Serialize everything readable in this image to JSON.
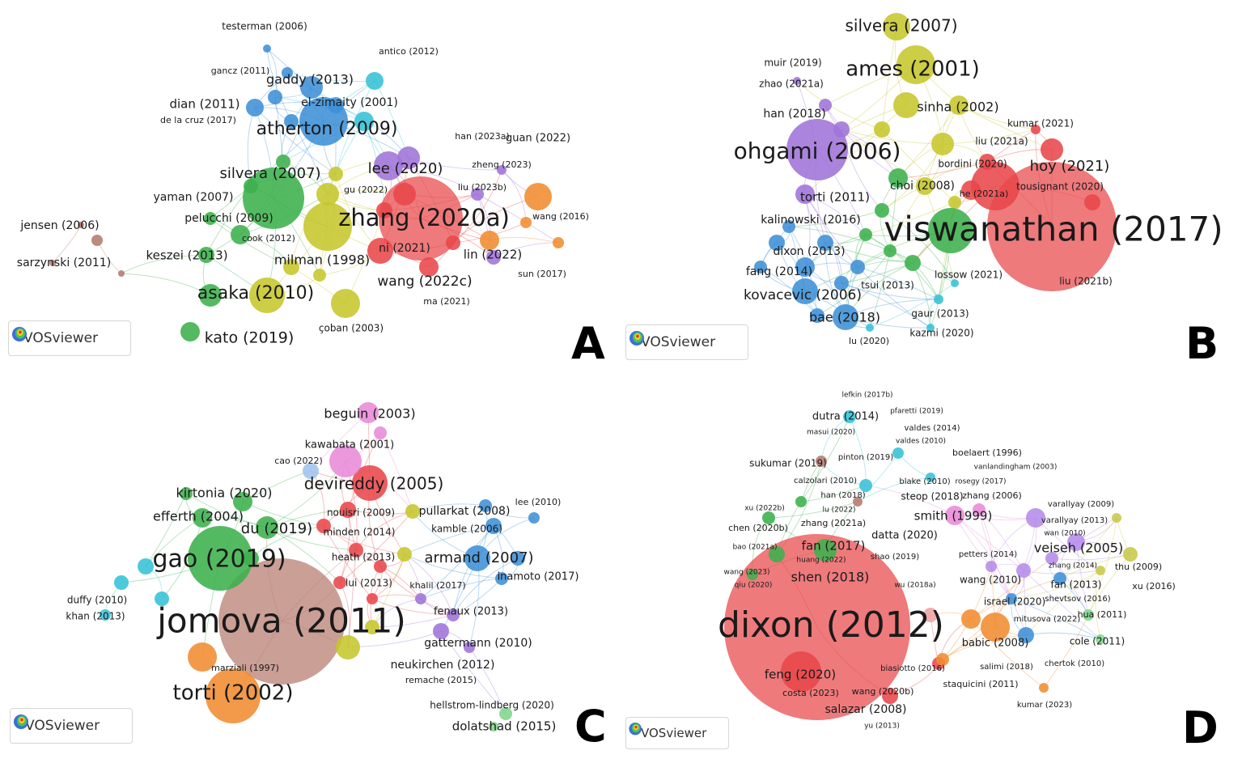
{
  "brand": {
    "logo_label": "VOSviewer"
  },
  "panels": [
    {
      "id": "A",
      "letter": "A",
      "labels": [
        [
          "testerman (2006)",
          327,
          33,
          12
        ],
        [
          "antico (2012)",
          505,
          64,
          11
        ],
        [
          "gancz (2011)",
          297,
          88,
          11
        ],
        [
          "gaddy (2013)",
          383,
          99,
          16
        ],
        [
          "dian (2011)",
          253,
          129,
          15
        ],
        [
          "el-zimaity (2001)",
          432,
          127,
          14
        ],
        [
          "de la cruz (2017)",
          245,
          149,
          11
        ],
        [
          "atherton (2009)",
          404,
          160,
          22
        ],
        [
          "han (2023a)",
          596,
          169,
          11
        ],
        [
          "guan (2022)",
          665,
          171,
          13
        ],
        [
          "lee (2020)",
          501,
          209,
          18
        ],
        [
          "zheng (2023)",
          620,
          204,
          11
        ],
        [
          "silvera (2007)",
          334,
          215,
          18
        ],
        [
          "gu (2022)",
          452,
          235,
          11
        ],
        [
          "liu (2023b)",
          596,
          232,
          11
        ],
        [
          "yaman (2007)",
          239,
          244,
          14
        ],
        [
          "zhang (2020a)",
          524,
          271,
          29
        ],
        [
          "wang (2016)",
          693,
          268,
          11
        ],
        [
          "jensen (2006)",
          74,
          279,
          14
        ],
        [
          "pelucchi (2009)",
          283,
          270,
          14
        ],
        [
          "cook (2012)",
          332,
          295,
          11
        ],
        [
          "ni (2021)",
          500,
          307,
          14
        ],
        [
          "keszei (2013)",
          231,
          316,
          15
        ],
        [
          "milman (1998)",
          398,
          322,
          16
        ],
        [
          "lin (2022)",
          609,
          315,
          15
        ],
        [
          "sarzynski (2011)",
          79,
          325,
          14
        ],
        [
          "sun (2017)",
          670,
          339,
          11
        ],
        [
          "wang (2022c)",
          525,
          348,
          17
        ],
        [
          "asaka (2010)",
          316,
          363,
          22
        ],
        [
          "ma (2021)",
          552,
          373,
          11
        ],
        [
          "çoban (2003)",
          434,
          406,
          12
        ],
        [
          "kato (2019)",
          308,
          418,
          19
        ]
      ]
    },
    {
      "id": "B",
      "letter": "B",
      "labels": [
        [
          "silvera (2007)",
          1114,
          33,
          20
        ],
        [
          "muir (2019)",
          980,
          78,
          12
        ],
        [
          "ames (2001)",
          1128,
          86,
          26
        ],
        [
          "zhao (2021a)",
          978,
          104,
          12
        ],
        [
          "sinha (2002)",
          1184,
          133,
          16
        ],
        [
          "han (2018)",
          982,
          141,
          14
        ],
        [
          "kumar (2021)",
          1286,
          153,
          12
        ],
        [
          "liu (2021a)",
          1238,
          175,
          12
        ],
        [
          "ohgami (2006)",
          1010,
          188,
          28
        ],
        [
          "bordini (2020)",
          1202,
          203,
          12
        ],
        [
          "hoy (2021)",
          1322,
          206,
          18
        ],
        [
          "choi (2008)",
          1140,
          230,
          14
        ],
        [
          "tousignant (2020)",
          1310,
          231,
          12
        ],
        [
          "he (2021a)",
          1216,
          240,
          11
        ],
        [
          "torti (2011)",
          1032,
          244,
          15
        ],
        [
          "kalinowski (2016)",
          1002,
          272,
          14
        ],
        [
          "viswanathan (2017)",
          1302,
          286,
          42
        ],
        [
          "dixon (2013)",
          1000,
          311,
          14
        ],
        [
          "fang (2014)",
          963,
          336,
          14
        ],
        [
          "lossow (2021)",
          1197,
          340,
          12
        ],
        [
          "liu (2021b)",
          1342,
          348,
          12
        ],
        [
          "tsui (2013)",
          1097,
          353,
          12
        ],
        [
          "kovacevic (2006)",
          992,
          365,
          17
        ],
        [
          "gaur (2013)",
          1162,
          388,
          12
        ],
        [
          "bae (2018)",
          1044,
          393,
          16
        ],
        [
          "kazmi (2020)",
          1164,
          412,
          12
        ],
        [
          "lu (2020)",
          1074,
          422,
          11
        ]
      ]
    },
    {
      "id": "C",
      "letter": "C",
      "labels": [
        [
          "beguin (2003)",
          457,
          512,
          16
        ],
        [
          "kawabata (2001)",
          432,
          550,
          13
        ],
        [
          "cao (2022)",
          369,
          570,
          11
        ],
        [
          "devireddy (2005)",
          462,
          599,
          20
        ],
        [
          "kirtonia (2020)",
          277,
          610,
          16
        ],
        [
          "pullarkat (2008)",
          574,
          632,
          14
        ],
        [
          "lee (2010)",
          665,
          621,
          11
        ],
        [
          "efferth (2004)",
          245,
          639,
          16
        ],
        [
          "nouisri (2009)",
          446,
          634,
          12
        ],
        [
          "du (2019)",
          342,
          654,
          18
        ],
        [
          "kamble (2006)",
          577,
          654,
          12
        ],
        [
          "minden (2014)",
          444,
          658,
          12
        ],
        [
          "gao (2019)",
          271,
          692,
          30
        ],
        [
          "armand (2007)",
          592,
          690,
          18
        ],
        [
          "heath (2013)",
          449,
          689,
          12
        ],
        [
          "inamoto (2017)",
          665,
          713,
          13
        ],
        [
          "lui (2013)",
          456,
          721,
          12
        ],
        [
          "khalil (2017)",
          541,
          724,
          11
        ],
        [
          "duffy (2010)",
          120,
          742,
          12
        ],
        [
          "fenaux (2013)",
          582,
          756,
          13
        ],
        [
          "khan (2013)",
          118,
          762,
          12
        ],
        [
          "jomova (2011)",
          348,
          770,
          42
        ],
        [
          "gattermann (2010)",
          591,
          795,
          14
        ],
        [
          "marziali (1997)",
          303,
          826,
          11
        ],
        [
          "neukirchen (2012)",
          547,
          822,
          14
        ],
        [
          "remache (2015)",
          545,
          841,
          11
        ],
        [
          "torti (2002)",
          288,
          857,
          26
        ],
        [
          "hellstrom-lindberg (2020)",
          608,
          872,
          12
        ],
        [
          "dolatshad (2015)",
          623,
          898,
          15
        ]
      ]
    },
    {
      "id": "D",
      "letter": "D",
      "labels": [
        [
          "lefkin (2017b)",
          1072,
          488,
          9
        ],
        [
          "pfaretti (2019)",
          1133,
          508,
          9
        ],
        [
          "dutra (2014)",
          1045,
          515,
          13
        ],
        [
          "valdes (2014)",
          1152,
          529,
          10
        ],
        [
          "masui (2020)",
          1027,
          534,
          9
        ],
        [
          "valdes (2010)",
          1138,
          545,
          9
        ],
        [
          "boelaert (1996)",
          1220,
          560,
          11
        ],
        [
          "pinton (2019)",
          1070,
          565,
          10
        ],
        [
          "sukumar (2019)",
          974,
          573,
          12
        ],
        [
          "vanlandingham (2003)",
          1255,
          577,
          9
        ],
        [
          "calzolari (2010)",
          1020,
          594,
          10
        ],
        [
          "blake (2010)",
          1143,
          595,
          10
        ],
        [
          "rosegy (2017)",
          1212,
          595,
          9
        ],
        [
          "steop (2018)",
          1152,
          614,
          12
        ],
        [
          "zhang (2006)",
          1226,
          613,
          11
        ],
        [
          "han (2018)",
          1042,
          612,
          10
        ],
        [
          "varallyay (2009)",
          1336,
          623,
          10
        ],
        [
          "xu (2022b)",
          945,
          628,
          9
        ],
        [
          "lu (2022)",
          1037,
          630,
          9
        ],
        [
          "smith (1999)",
          1178,
          638,
          15
        ],
        [
          "varallyay (2013)",
          1328,
          643,
          10
        ],
        [
          "zhang (2021a)",
          1030,
          647,
          11
        ],
        [
          "chen (2020b)",
          937,
          653,
          11
        ],
        [
          "wan (2010)",
          1316,
          659,
          9
        ],
        [
          "datta (2020)",
          1118,
          662,
          13
        ],
        [
          "bao (2021a)",
          933,
          676,
          9
        ],
        [
          "fan (2017)",
          1030,
          675,
          15
        ],
        [
          "veiseh (2005)",
          1333,
          678,
          16
        ],
        [
          "petters (2014)",
          1221,
          685,
          10
        ],
        [
          "huang (2022)",
          1015,
          692,
          9
        ],
        [
          "shao (2019)",
          1106,
          688,
          10
        ],
        [
          "zhang (2014)",
          1326,
          699,
          9
        ],
        [
          "thu (2009)",
          1407,
          701,
          11
        ],
        [
          "wang (2023)",
          923,
          707,
          9
        ],
        [
          "shen (2018)",
          1026,
          714,
          16
        ],
        [
          "wang (2010)",
          1224,
          717,
          12
        ],
        [
          "qiu (2020)",
          931,
          723,
          9
        ],
        [
          "wu (2018a)",
          1131,
          723,
          9
        ],
        [
          "fan (2013)",
          1330,
          723,
          12
        ],
        [
          "xu (2016)",
          1426,
          725,
          11
        ],
        [
          "shevtsov (2016)",
          1332,
          740,
          10
        ],
        [
          "israel (2020)",
          1254,
          744,
          12
        ],
        [
          "hua (2011)",
          1362,
          760,
          11
        ],
        [
          "mitusova (2022)",
          1294,
          765,
          10
        ],
        [
          "dixon (2012)",
          1027,
          775,
          44
        ],
        [
          "babic (2008)",
          1230,
          795,
          13
        ],
        [
          "cole (2011)",
          1356,
          793,
          12
        ],
        [
          "salimi (2018)",
          1244,
          824,
          10
        ],
        [
          "chertok (2010)",
          1328,
          820,
          10
        ],
        [
          "biasiotto (2016)",
          1128,
          826,
          10
        ],
        [
          "feng (2020)",
          989,
          834,
          15
        ],
        [
          "staquicini (2011)",
          1212,
          846,
          11
        ],
        [
          "costa (2023)",
          1002,
          857,
          11
        ],
        [
          "wang (2020b)",
          1091,
          855,
          11
        ],
        [
          "kumar (2023)",
          1291,
          871,
          10
        ],
        [
          "salazar (2008)",
          1070,
          877,
          14
        ],
        [
          "yu (2013)",
          1090,
          897,
          9
        ]
      ]
    }
  ]
}
